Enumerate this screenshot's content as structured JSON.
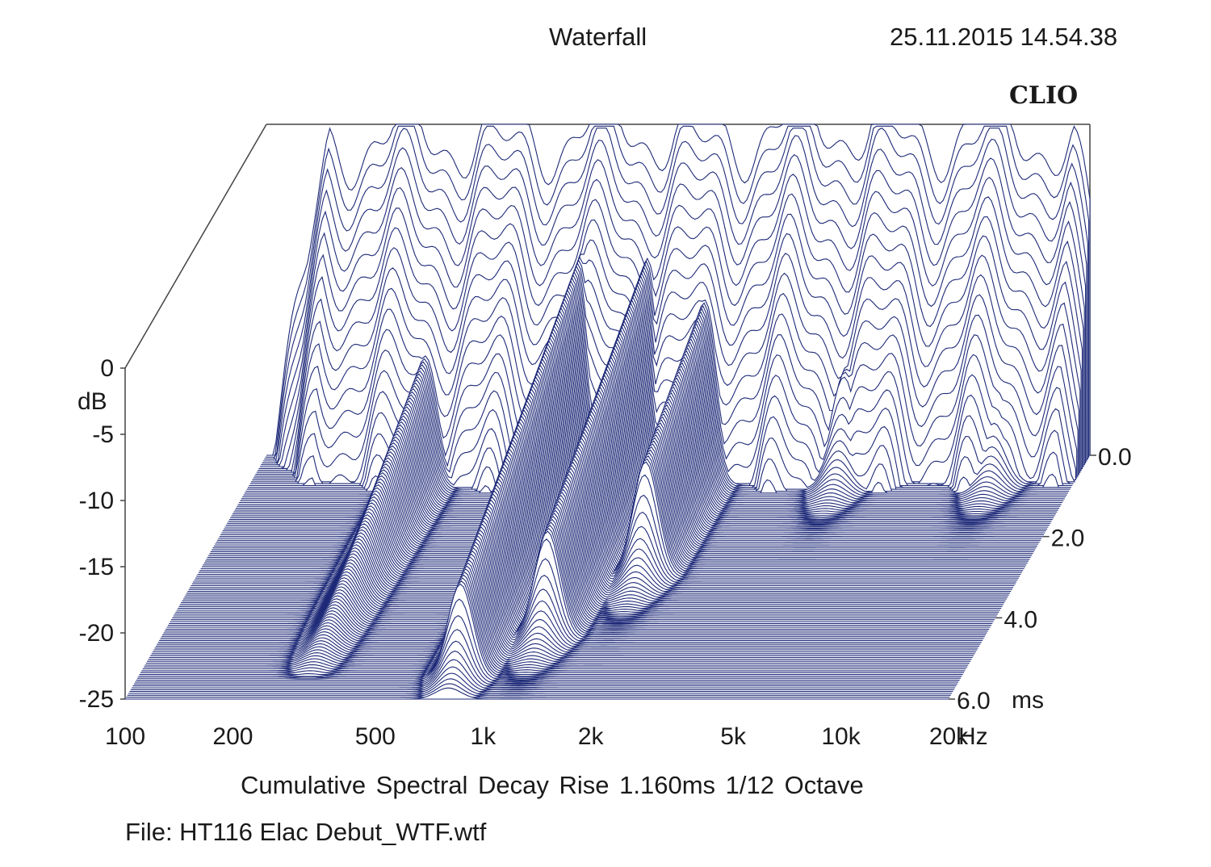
{
  "header": {
    "title": "Waterfall",
    "timestamp": "25.11.2015 14.54.38",
    "logo": "CLIO"
  },
  "footer": {
    "subtitle": "Cumulative Spectral Decay   Rise 1.160ms   1/12 Octave",
    "filename": "File: HT116 Elac Debut_WTF.wtf"
  },
  "colors": {
    "trace": "#1e2a78",
    "axes": "#444444",
    "background": "#ffffff"
  },
  "chart_data": {
    "type": "waterfall",
    "title": "Waterfall",
    "ylabel": "dB",
    "xunit": "Hz",
    "zunit": "ms",
    "ylim": [
      -25,
      0
    ],
    "xlim": [
      100,
      20000
    ],
    "xscale": "log",
    "zlim": [
      0,
      6
    ],
    "y_ticks": [
      {
        "value": 0,
        "label": "0"
      },
      {
        "value": -5,
        "label": "-5"
      },
      {
        "value": -10,
        "label": "-10"
      },
      {
        "value": -15,
        "label": "-15"
      },
      {
        "value": -20,
        "label": "-20"
      },
      {
        "value": -25,
        "label": "-25"
      }
    ],
    "x_ticks": [
      {
        "value": 100,
        "label": "100"
      },
      {
        "value": 200,
        "label": "200"
      },
      {
        "value": 500,
        "label": "500"
      },
      {
        "value": 1000,
        "label": "1k"
      },
      {
        "value": 2000,
        "label": "2k"
      },
      {
        "value": 5000,
        "label": "5k"
      },
      {
        "value": 10000,
        "label": "10k"
      },
      {
        "value": 20000,
        "label": "20k"
      }
    ],
    "z_ticks": [
      {
        "value": 0,
        "label": "0.0"
      },
      {
        "value": 2,
        "label": "2.0"
      },
      {
        "value": 4,
        "label": "4.0"
      },
      {
        "value": 6,
        "label": "6.0"
      }
    ],
    "initial_response_db": {
      "freq_hz": [
        100,
        130,
        150,
        200,
        300,
        500,
        700,
        1000,
        1500,
        2000,
        3000,
        5000,
        7000,
        10000,
        15000,
        18000,
        20000
      ],
      "level_db": [
        -25,
        -12,
        -2,
        -1,
        -1,
        -1,
        -1,
        0,
        -1,
        -1,
        0,
        0,
        -1,
        0,
        -1,
        -2,
        -8
      ]
    },
    "decay_ridges": [
      {
        "freq_hz": 300,
        "decay_ms": 6.0,
        "level_db": -15
      },
      {
        "freq_hz": 800,
        "decay_ms": 5.5,
        "level_db": -8
      },
      {
        "freq_hz": 1200,
        "decay_ms": 4.5,
        "level_db": -9
      },
      {
        "freq_hz": 1800,
        "decay_ms": 3.0,
        "level_db": -11
      },
      {
        "freq_hz": 4500,
        "decay_ms": 0.6,
        "level_db": -16
      },
      {
        "freq_hz": 12000,
        "decay_ms": 0.6,
        "level_db": -17
      }
    ]
  }
}
